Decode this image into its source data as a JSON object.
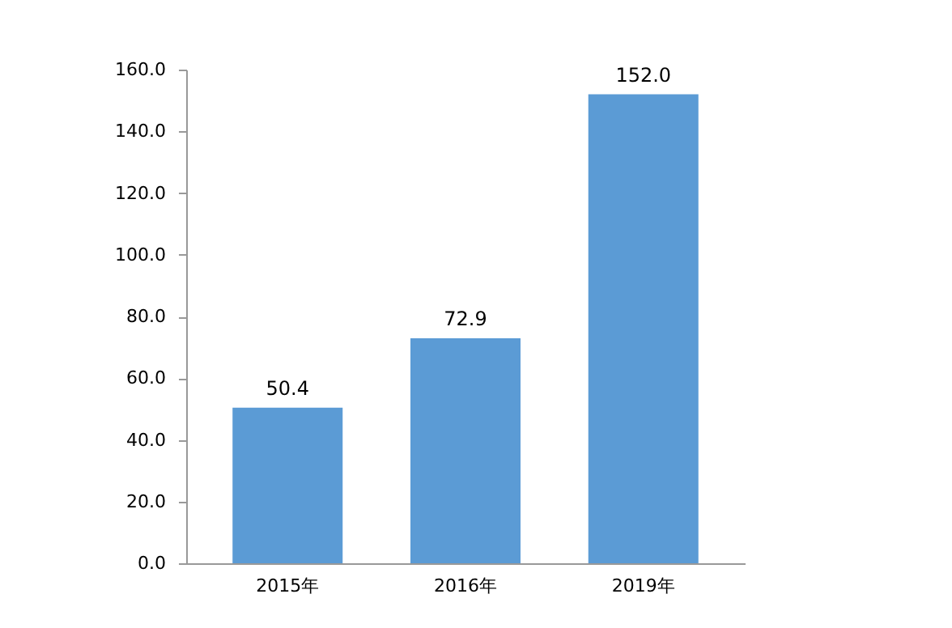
{
  "chart_data": {
    "type": "bar",
    "categories": [
      "2015年",
      "2016年",
      "2019年"
    ],
    "values": [
      50.4,
      72.9,
      152.0
    ],
    "value_labels": [
      "50.4",
      "72.9",
      "152.0"
    ],
    "color": "#5b9bd5",
    "ylim": [
      0,
      160
    ],
    "yticks": [
      {
        "value": 0,
        "label": "0.0"
      },
      {
        "value": 20,
        "label": "20.0"
      },
      {
        "value": 40,
        "label": "40.0"
      },
      {
        "value": 60,
        "label": "60.0"
      },
      {
        "value": 80,
        "label": "80.0"
      },
      {
        "value": 100,
        "label": "100.0"
      },
      {
        "value": 120,
        "label": "120.0"
      },
      {
        "value": 140,
        "label": "140.0"
      },
      {
        "value": 160,
        "label": "160.0"
      }
    ],
    "grid": false
  }
}
